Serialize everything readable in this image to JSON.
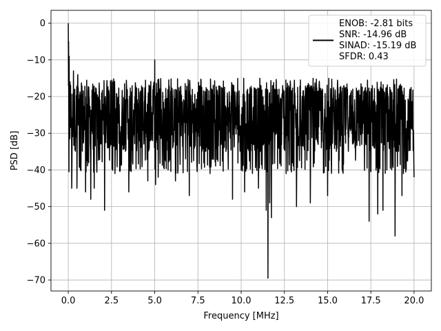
{
  "chart_data": {
    "type": "line",
    "xlabel": "Frequency [MHz]",
    "ylabel": "PSD [dB]",
    "xlim": [
      -1.0,
      21.0
    ],
    "ylim": [
      -73.0,
      3.5
    ],
    "xticks": [
      0.0,
      2.5,
      5.0,
      7.5,
      10.0,
      12.5,
      15.0,
      17.5,
      20.0
    ],
    "xtick_labels": [
      "0.0",
      "2.5",
      "5.0",
      "7.5",
      "10.0",
      "12.5",
      "15.0",
      "17.5",
      "20.0"
    ],
    "yticks": [
      0,
      -10,
      -20,
      -30,
      -40,
      -50,
      -60,
      -70
    ],
    "ytick_labels": [
      "0",
      "−10",
      "−20",
      "−30",
      "−40",
      "−50",
      "−60",
      "−70"
    ],
    "grid": true,
    "legend_position": "top-right",
    "legend_lines": [
      "ENOB: -2.81 bits",
      "SNR: -14.96 dB",
      "SINAD: -15.19 dB",
      "SFDR: 0.43"
    ],
    "series": [
      {
        "color": "#000000",
        "x_start": 0.0,
        "x_end": 20.0,
        "noise_band": {
          "upper_typical": -15,
          "lower_typical": -37,
          "center": -26
        },
        "x": [
          0.0,
          0.02,
          0.05,
          0.1,
          0.2,
          0.3,
          0.5,
          0.55,
          0.7,
          1.0,
          1.3,
          1.5,
          2.1,
          2.7,
          3.5,
          4.6,
          5.0,
          5.05,
          5.2,
          6.2,
          7.0,
          8.2,
          9.5,
          10.2,
          11.0,
          11.45,
          11.55,
          11.65,
          11.75,
          12.6,
          13.2,
          14.0,
          15.0,
          17.4,
          17.9,
          18.2,
          18.9,
          19.3,
          20.0
        ],
        "y": [
          0,
          -5,
          -9,
          -16,
          -45,
          -13,
          -45,
          -14,
          -40,
          -46,
          -48,
          -45,
          -51,
          -41,
          -46,
          -43,
          -10,
          -44,
          -42,
          -43,
          -47,
          -41,
          -48,
          -46,
          -45,
          -51,
          -69.5,
          -49,
          -53,
          -41,
          -50,
          -49,
          -47,
          -54,
          -52,
          -51,
          -58,
          -47,
          -42
        ]
      }
    ]
  }
}
